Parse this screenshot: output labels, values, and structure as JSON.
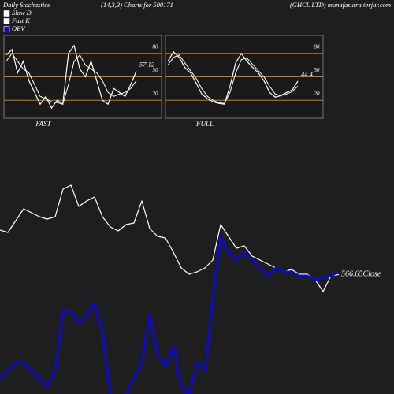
{
  "header": {
    "left": "Daily Stochastics",
    "center": "(14,3,3) Charts for 500171",
    "right": "(GHCL LTD) munafasutra.tbrjar.com"
  },
  "chart_data": [
    {
      "type": "line",
      "xlabel": "FAST",
      "ylim": [
        0,
        100
      ],
      "yticks": [
        20,
        50,
        80
      ],
      "tick_color": "#c8791e",
      "series": [
        {
          "name": "Slow D",
          "color": "#ffffff",
          "values": [
            70,
            80,
            70,
            60,
            55,
            40,
            25,
            22,
            18,
            17,
            15,
            40,
            70,
            78,
            65,
            60,
            55,
            45,
            30,
            25,
            28,
            30,
            35,
            45
          ]
        },
        {
          "name": "Fast K",
          "color": "#ffffff",
          "values": [
            78,
            85,
            55,
            70,
            45,
            30,
            15,
            25,
            10,
            20,
            15,
            80,
            90,
            60,
            50,
            70,
            45,
            20,
            15,
            35,
            30,
            25,
            40,
            57.12
          ]
        }
      ]
    },
    {
      "type": "line",
      "xlabel": "FULL",
      "ylim": [
        0,
        100
      ],
      "yticks": [
        20,
        50,
        80
      ],
      "tick_color": "#c8791e",
      "series": [
        {
          "color": "#ffffff",
          "values": [
            65,
            75,
            78,
            68,
            58,
            48,
            35,
            25,
            20,
            17,
            16,
            30,
            55,
            72,
            74,
            66,
            58,
            50,
            38,
            28,
            26,
            28,
            31,
            38
          ]
        },
        {
          "color": "#ffffff",
          "values": [
            70,
            82,
            75,
            62,
            55,
            42,
            28,
            22,
            18,
            16,
            15,
            38,
            68,
            80,
            70,
            62,
            55,
            45,
            30,
            24,
            26,
            30,
            33,
            44.4
          ]
        }
      ]
    },
    {
      "type": "line",
      "ylim": [
        415,
        715
      ],
      "y2lim": [
        0,
        300
      ],
      "series": [
        {
          "name": "Close",
          "color": "#ffffff",
          "values": [
            623,
            620,
            635,
            650,
            645,
            640,
            637,
            640,
            675,
            680,
            653,
            660,
            665,
            640,
            627,
            622,
            630,
            632,
            660,
            625,
            615,
            613,
            595,
            575,
            567,
            570,
            575,
            585,
            630,
            615,
            600,
            603,
            590,
            585,
            580,
            575,
            570,
            573,
            567,
            567,
            560,
            545,
            565,
            566.65
          ]
        },
        {
          "name": "OBV",
          "color": "#0a0ad2",
          "axis": "y2",
          "values": [
            20,
            30,
            40,
            40,
            30,
            20,
            10,
            30,
            105,
            105,
            90,
            100,
            115,
            80,
            0,
            -10,
            0,
            20,
            40,
            100,
            50,
            35,
            60,
            10,
            0,
            40,
            30,
            120,
            200,
            180,
            170,
            180,
            170,
            160,
            150,
            160,
            155,
            155,
            150,
            150,
            145,
            148,
            150,
            155
          ]
        }
      ]
    }
  ]
}
